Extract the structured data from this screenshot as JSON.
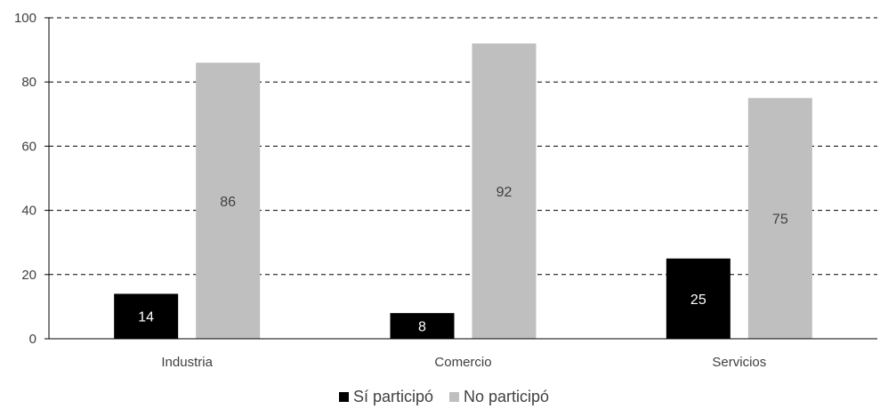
{
  "chart_data": {
    "type": "bar",
    "categories": [
      "Industria",
      "Comercio",
      "Servicios"
    ],
    "series": [
      {
        "name": "Sí participó",
        "values": [
          14,
          8,
          25
        ],
        "color": "#000000",
        "label_color": "#ffffff"
      },
      {
        "name": "No participó",
        "values": [
          86,
          92,
          75
        ],
        "color": "#bfbfbf",
        "label_color": "#404040"
      }
    ],
    "ylim": [
      0,
      100
    ],
    "yticks": [
      0,
      20,
      40,
      60,
      80,
      100
    ],
    "grid": "dashed horizontal",
    "legend_position": "bottom-center",
    "title": "",
    "xlabel": "",
    "ylabel": ""
  }
}
